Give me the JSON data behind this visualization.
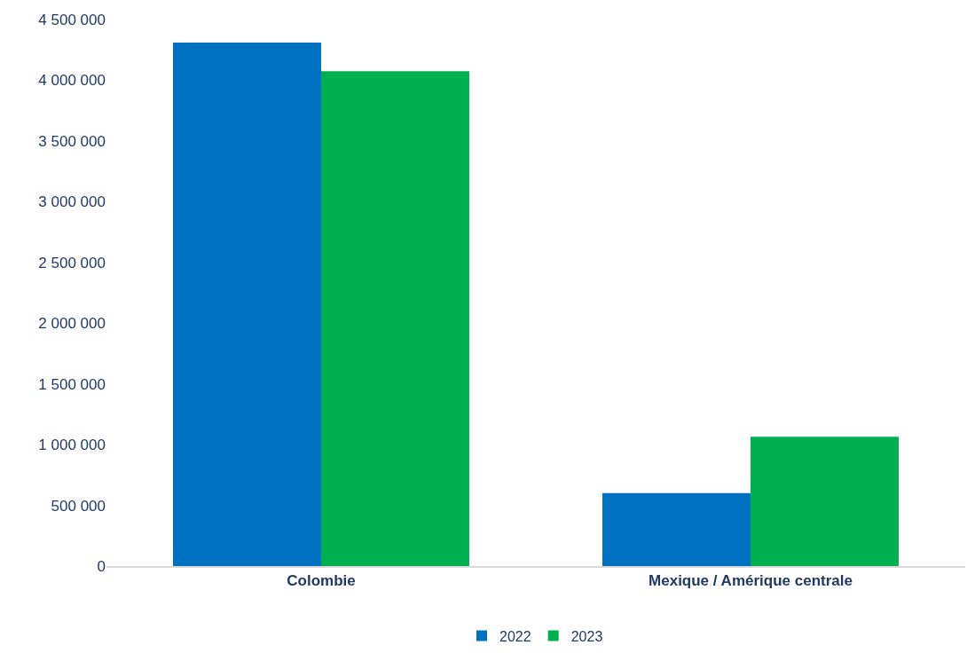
{
  "chart_data": {
    "type": "bar",
    "categories": [
      "Colombie",
      "Mexique / Amérique centrale"
    ],
    "series": [
      {
        "name": "2022",
        "color": "#0070c0",
        "values": [
          4310000,
          600000
        ]
      },
      {
        "name": "2023",
        "color": "#00b050",
        "values": [
          4075000,
          1065000
        ]
      }
    ],
    "ylim": [
      0,
      4500000
    ],
    "yticks": [
      {
        "value": 0,
        "label": "0"
      },
      {
        "value": 500000,
        "label": "500 000"
      },
      {
        "value": 1000000,
        "label": "1 000 000"
      },
      {
        "value": 1500000,
        "label": "1 500 000"
      },
      {
        "value": 2000000,
        "label": "2 000 000"
      },
      {
        "value": 2500000,
        "label": "2 500 000"
      },
      {
        "value": 3000000,
        "label": "3 000 000"
      },
      {
        "value": 3500000,
        "label": "3 500 000"
      },
      {
        "value": 4000000,
        "label": "4 000 000"
      },
      {
        "value": 4500000,
        "label": "4 500 000"
      }
    ],
    "grid": false,
    "legend": "bottom"
  }
}
